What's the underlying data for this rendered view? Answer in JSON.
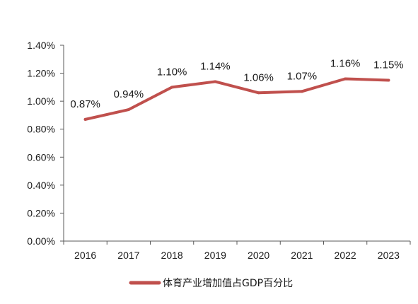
{
  "chart_data": {
    "type": "line",
    "title": "",
    "xlabel": "",
    "ylabel": "",
    "categories": [
      "2016",
      "2017",
      "2018",
      "2019",
      "2020",
      "2021",
      "2022",
      "2023"
    ],
    "series": [
      {
        "name": "体育产业增加值占GDP百分比",
        "values": [
          0.87,
          0.94,
          1.1,
          1.14,
          1.06,
          1.07,
          1.16,
          1.15
        ],
        "labels": [
          "0.87%",
          "0.94%",
          "1.10%",
          "1.14%",
          "1.06%",
          "1.07%",
          "1.16%",
          "1.15%"
        ],
        "color": "#c0504d"
      }
    ],
    "ylim": [
      0,
      1.4
    ],
    "yticks": [
      0,
      0.2,
      0.4,
      0.6,
      0.8,
      1.0,
      1.2,
      1.4
    ],
    "ytick_labels": [
      "0.00%",
      "0.20%",
      "0.40%",
      "0.60%",
      "0.80%",
      "1.00%",
      "1.20%",
      "1.40%"
    ],
    "grid": false,
    "legend": "bottom"
  },
  "colors": {
    "line": "#c0504d",
    "axis": "#595959",
    "text": "#1a1a1a"
  }
}
